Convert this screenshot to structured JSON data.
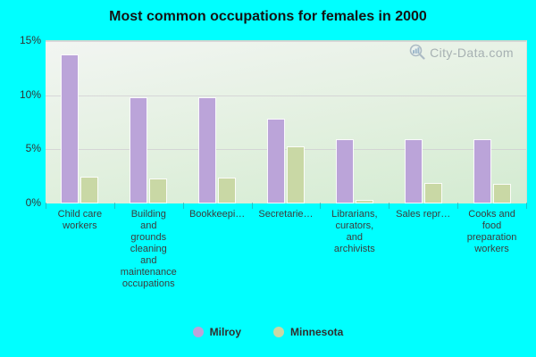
{
  "title": "Most common occupations for females in 2000",
  "watermark": "City-Data.com",
  "colors": {
    "background": "#00ffff",
    "milroy_bar": "#bba4d9",
    "minnesota_bar": "#c9d8a5",
    "plot_gradient_top": "#f2f5f2",
    "plot_gradient_bottom": "#d3ebd1"
  },
  "chart_data": {
    "type": "bar",
    "title": "Most common occupations for females in 2000",
    "categories": [
      {
        "label": "Child care workers",
        "lines": [
          "Child care",
          "workers"
        ]
      },
      {
        "label": "Building and grounds cleaning and maintenance occupations",
        "lines": [
          "Building",
          "and",
          "grounds",
          "cleaning",
          "and",
          "maintenance",
          "occupations"
        ]
      },
      {
        "label": "Bookkeepi…",
        "lines": [
          "Bookkeepi…"
        ]
      },
      {
        "label": "Secretarie…",
        "lines": [
          "Secretarie…"
        ]
      },
      {
        "label": "Librarians, curators, and archivists",
        "lines": [
          "Librarians,",
          "curators,",
          "and",
          "archivists"
        ]
      },
      {
        "label": "Sales repr…",
        "lines": [
          "Sales repr…"
        ]
      },
      {
        "label": "Cooks and food preparation workers",
        "lines": [
          "Cooks and",
          "food",
          "preparation",
          "workers"
        ]
      }
    ],
    "series": [
      {
        "name": "Milroy",
        "color": "#bba4d9",
        "values": [
          13.8,
          9.8,
          9.8,
          7.8,
          5.9,
          5.9,
          5.9
        ]
      },
      {
        "name": "Minnesota",
        "color": "#c9d8a5",
        "values": [
          2.5,
          2.3,
          2.4,
          5.3,
          0.3,
          1.9,
          1.8
        ]
      }
    ],
    "xlabel": "",
    "ylabel": "",
    "y_ticks": [
      "0%",
      "5%",
      "10%",
      "15%"
    ],
    "ylim": [
      0,
      15
    ],
    "grid": true,
    "legend_position": "bottom"
  }
}
